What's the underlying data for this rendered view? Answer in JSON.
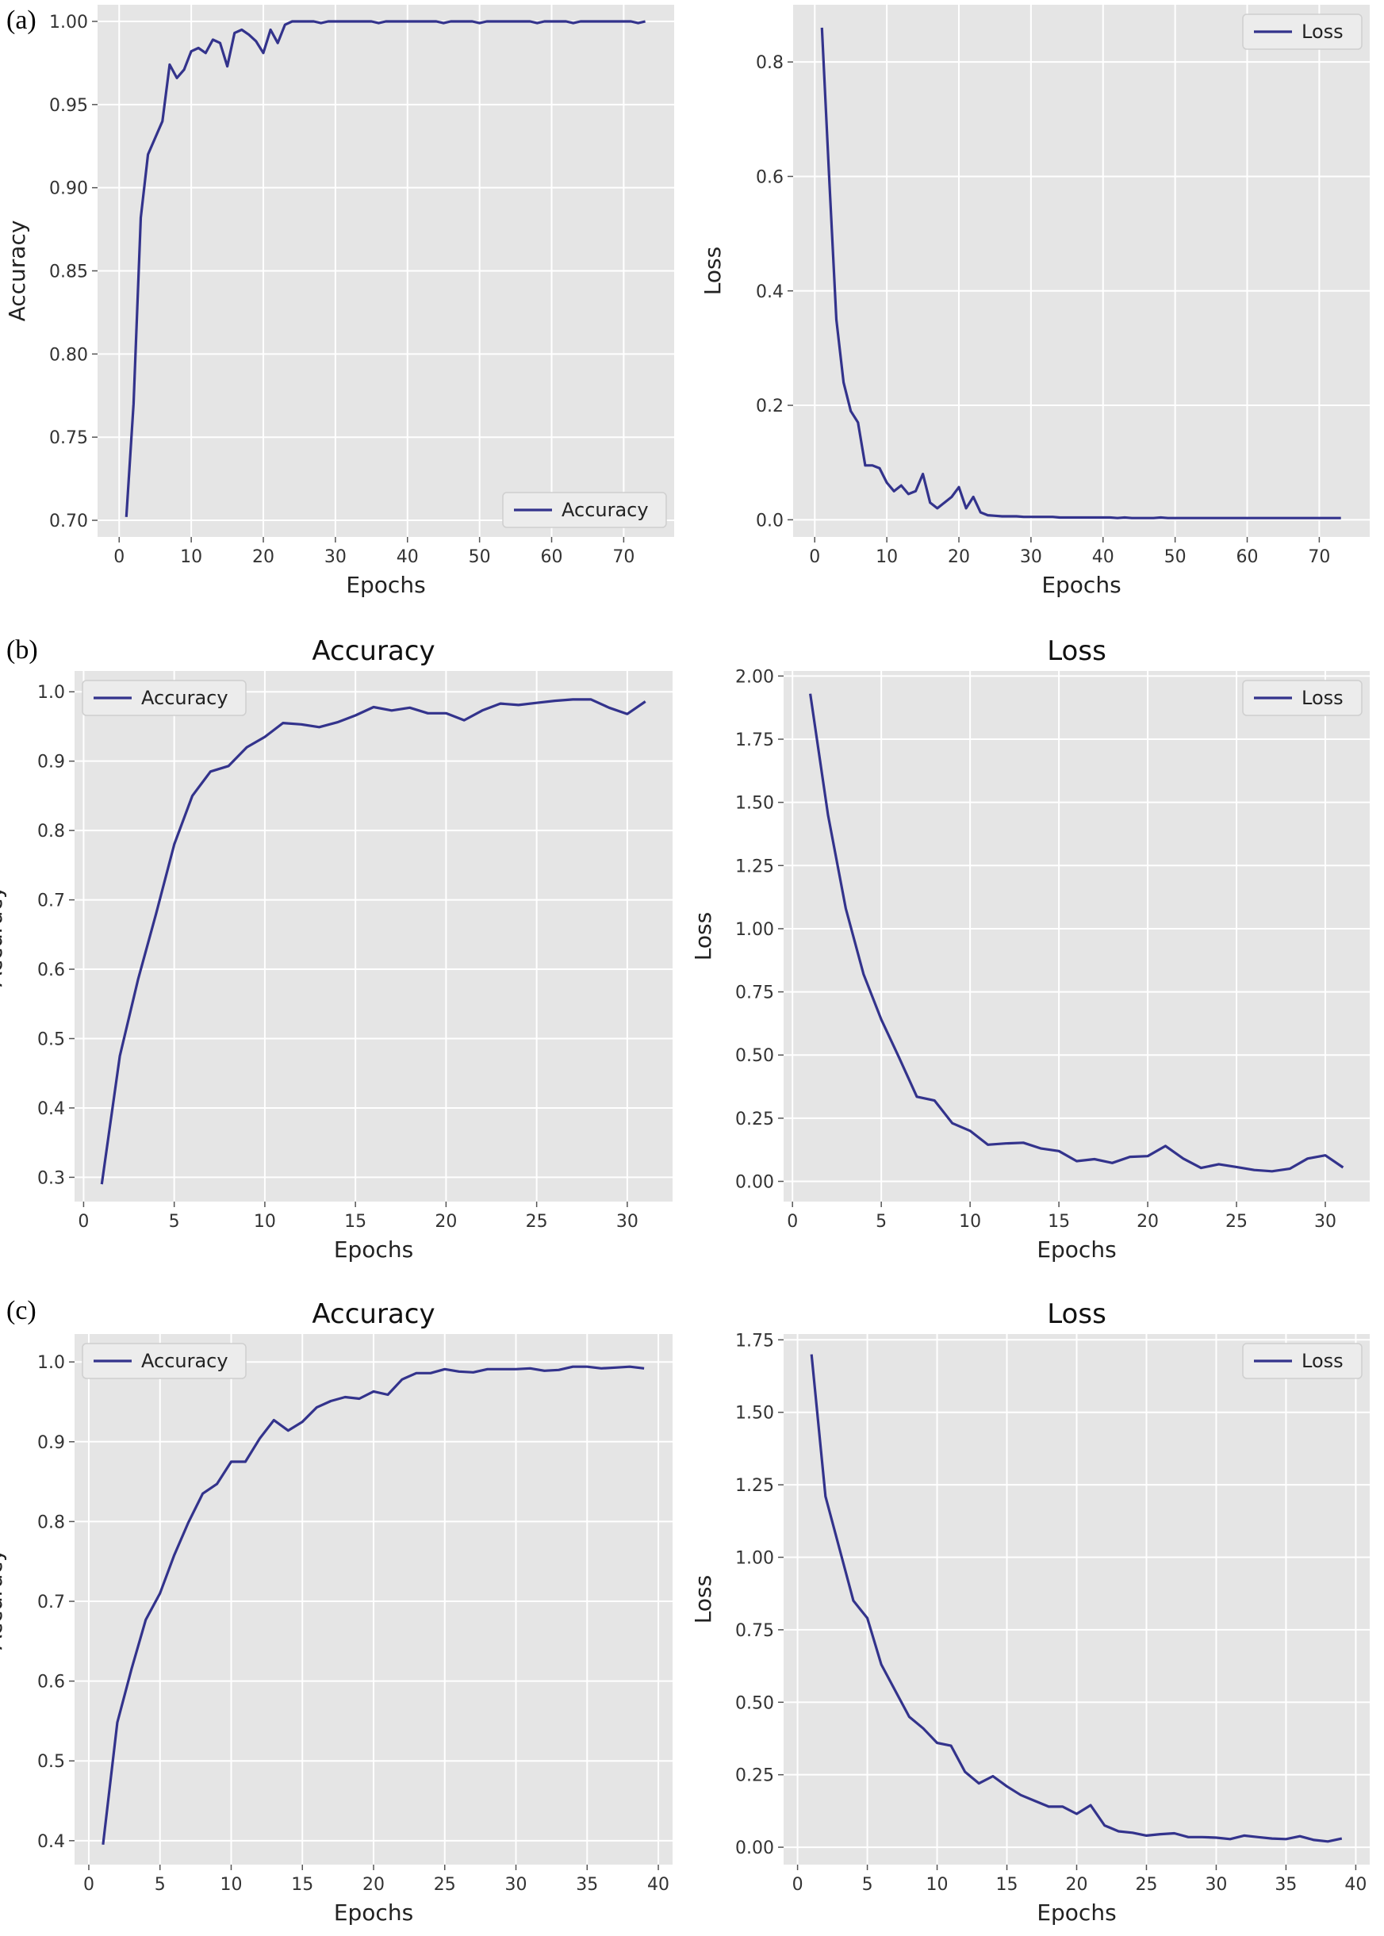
{
  "panel_labels": [
    "(a)",
    "(b)",
    "(c)"
  ],
  "colors": {
    "line": "#33338c",
    "panel_bg": "#e5e5e5",
    "grid": "#ffffff",
    "legend_bg": "#ececec"
  },
  "chart_data": [
    {
      "id": "a-accuracy",
      "type": "line",
      "panel": "(a)",
      "title": "",
      "xlabel": "Epochs",
      "ylabel": "Accuracy",
      "xlim": [
        -3,
        77
      ],
      "ylim": [
        0.69,
        1.01
      ],
      "xticks": [
        0,
        10,
        20,
        30,
        40,
        50,
        60,
        70
      ],
      "yticks": [
        0.7,
        0.75,
        0.8,
        0.85,
        0.9,
        0.95,
        1.0
      ],
      "ydecimals": 2,
      "legend": {
        "label": "Accuracy",
        "position": "bottom-right"
      },
      "series": [
        {
          "name": "Accuracy",
          "x": [
            1,
            2,
            3,
            4,
            5,
            6,
            7,
            8,
            9,
            10,
            11,
            12,
            13,
            14,
            15,
            16,
            17,
            18,
            19,
            20,
            21,
            22,
            23,
            24,
            25,
            26,
            27,
            28,
            29,
            30,
            31,
            32,
            33,
            34,
            35,
            36,
            37,
            38,
            39,
            40,
            41,
            42,
            43,
            44,
            45,
            46,
            47,
            48,
            49,
            50,
            51,
            52,
            53,
            54,
            55,
            56,
            57,
            58,
            59,
            60,
            61,
            62,
            63,
            64,
            65,
            66,
            67,
            68,
            69,
            70,
            71,
            72,
            73
          ],
          "values": [
            0.702,
            0.77,
            0.882,
            0.92,
            0.93,
            0.94,
            0.974,
            0.966,
            0.971,
            0.982,
            0.984,
            0.981,
            0.989,
            0.987,
            0.973,
            0.993,
            0.995,
            0.992,
            0.988,
            0.981,
            0.995,
            0.987,
            0.998,
            1.0,
            1.0,
            1.0,
            1.0,
            0.999,
            1.0,
            1.0,
            1.0,
            1.0,
            1.0,
            1.0,
            1.0,
            0.999,
            1.0,
            1.0,
            1.0,
            1.0,
            1.0,
            1.0,
            1.0,
            1.0,
            0.999,
            1.0,
            1.0,
            1.0,
            1.0,
            0.999,
            1.0,
            1.0,
            1.0,
            1.0,
            1.0,
            1.0,
            1.0,
            0.999,
            1.0,
            1.0,
            1.0,
            1.0,
            0.999,
            1.0,
            1.0,
            1.0,
            1.0,
            1.0,
            1.0,
            1.0,
            1.0,
            0.999,
            1.0
          ]
        }
      ]
    },
    {
      "id": "a-loss",
      "type": "line",
      "panel": "(a)",
      "title": "",
      "xlabel": "Epochs",
      "ylabel": "Loss",
      "xlim": [
        -3,
        77
      ],
      "ylim": [
        -0.03,
        0.9
      ],
      "xticks": [
        0,
        10,
        20,
        30,
        40,
        50,
        60,
        70
      ],
      "yticks": [
        0.0,
        0.2,
        0.4,
        0.6,
        0.8
      ],
      "ydecimals": 1,
      "legend": {
        "label": "Loss",
        "position": "top-right"
      },
      "series": [
        {
          "name": "Loss",
          "x": [
            1,
            2,
            3,
            4,
            5,
            6,
            7,
            8,
            9,
            10,
            11,
            12,
            13,
            14,
            15,
            16,
            17,
            18,
            19,
            20,
            21,
            22,
            23,
            24,
            25,
            26,
            27,
            28,
            29,
            30,
            31,
            32,
            33,
            34,
            35,
            36,
            37,
            38,
            39,
            40,
            41,
            42,
            43,
            44,
            45,
            46,
            47,
            48,
            49,
            50,
            51,
            52,
            53,
            54,
            55,
            56,
            57,
            58,
            59,
            60,
            61,
            62,
            63,
            64,
            65,
            66,
            67,
            68,
            69,
            70,
            71,
            72,
            73
          ],
          "values": [
            0.86,
            0.6,
            0.35,
            0.24,
            0.19,
            0.17,
            0.095,
            0.095,
            0.09,
            0.065,
            0.05,
            0.06,
            0.045,
            0.05,
            0.08,
            0.03,
            0.02,
            0.03,
            0.04,
            0.057,
            0.02,
            0.04,
            0.013,
            0.008,
            0.007,
            0.006,
            0.006,
            0.006,
            0.005,
            0.005,
            0.005,
            0.005,
            0.005,
            0.004,
            0.004,
            0.004,
            0.004,
            0.004,
            0.004,
            0.004,
            0.004,
            0.003,
            0.004,
            0.003,
            0.003,
            0.003,
            0.003,
            0.004,
            0.003,
            0.003,
            0.003,
            0.003,
            0.003,
            0.003,
            0.003,
            0.003,
            0.003,
            0.003,
            0.003,
            0.003,
            0.003,
            0.003,
            0.003,
            0.003,
            0.003,
            0.003,
            0.003,
            0.003,
            0.003,
            0.003,
            0.003,
            0.003,
            0.003
          ]
        }
      ]
    },
    {
      "id": "b-accuracy",
      "type": "line",
      "panel": "(b)",
      "title": "Accuracy",
      "xlabel": "Epochs",
      "ylabel": "Accuracy",
      "xlim": [
        -0.5,
        32.5
      ],
      "ylim": [
        0.265,
        1.03
      ],
      "xticks": [
        0,
        5,
        10,
        15,
        20,
        25,
        30
      ],
      "yticks": [
        0.3,
        0.4,
        0.5,
        0.6,
        0.7,
        0.8,
        0.9,
        1.0
      ],
      "ydecimals": 1,
      "legend": {
        "label": "Accuracy",
        "position": "top-left"
      },
      "series": [
        {
          "name": "Accuracy",
          "x": [
            1,
            2,
            3,
            4,
            5,
            6,
            7,
            8,
            9,
            10,
            11,
            12,
            13,
            14,
            15,
            16,
            17,
            18,
            19,
            20,
            21,
            22,
            23,
            24,
            25,
            26,
            27,
            28,
            29,
            30,
            31
          ],
          "values": [
            0.29,
            0.475,
            0.585,
            0.68,
            0.78,
            0.85,
            0.885,
            0.893,
            0.92,
            0.935,
            0.955,
            0.953,
            0.949,
            0.956,
            0.966,
            0.978,
            0.973,
            0.977,
            0.969,
            0.969,
            0.959,
            0.973,
            0.983,
            0.981,
            0.984,
            0.987,
            0.989,
            0.989,
            0.977,
            0.968,
            0.986
          ]
        }
      ]
    },
    {
      "id": "b-loss",
      "type": "line",
      "panel": "(b)",
      "title": "Loss",
      "xlabel": "Epochs",
      "ylabel": "Loss",
      "xlim": [
        -0.5,
        32.5
      ],
      "ylim": [
        -0.08,
        2.02
      ],
      "xticks": [
        0,
        5,
        10,
        15,
        20,
        25,
        30
      ],
      "yticks": [
        0.0,
        0.25,
        0.5,
        0.75,
        1.0,
        1.25,
        1.5,
        1.75,
        2.0
      ],
      "ydecimals": 2,
      "legend": {
        "label": "Loss",
        "position": "top-right"
      },
      "series": [
        {
          "name": "Loss",
          "x": [
            1,
            2,
            3,
            4,
            5,
            6,
            7,
            8,
            9,
            10,
            11,
            12,
            13,
            14,
            15,
            16,
            17,
            18,
            19,
            20,
            21,
            22,
            23,
            24,
            25,
            26,
            27,
            28,
            29,
            30,
            31
          ],
          "values": [
            1.93,
            1.45,
            1.08,
            0.82,
            0.64,
            0.49,
            0.335,
            0.32,
            0.23,
            0.2,
            0.145,
            0.15,
            0.153,
            0.13,
            0.12,
            0.08,
            0.088,
            0.073,
            0.097,
            0.1,
            0.14,
            0.09,
            0.053,
            0.068,
            0.057,
            0.045,
            0.04,
            0.05,
            0.09,
            0.103,
            0.055
          ]
        }
      ]
    },
    {
      "id": "c-accuracy",
      "type": "line",
      "panel": "(c)",
      "title": "Accuracy",
      "xlabel": "Epochs",
      "ylabel": "Accuracy",
      "xlim": [
        -1,
        41
      ],
      "ylim": [
        0.37,
        1.035
      ],
      "xticks": [
        0,
        5,
        10,
        15,
        20,
        25,
        30,
        35,
        40
      ],
      "yticks": [
        0.4,
        0.5,
        0.6,
        0.7,
        0.8,
        0.9,
        1.0
      ],
      "ydecimals": 1,
      "legend": {
        "label": "Accuracy",
        "position": "top-left"
      },
      "series": [
        {
          "name": "Accuracy",
          "x": [
            1,
            2,
            3,
            4,
            5,
            6,
            7,
            8,
            9,
            10,
            11,
            12,
            13,
            14,
            15,
            16,
            17,
            18,
            19,
            20,
            21,
            22,
            23,
            24,
            25,
            26,
            27,
            28,
            29,
            30,
            31,
            32,
            33,
            34,
            35,
            36,
            37,
            38,
            39
          ],
          "values": [
            0.395,
            0.548,
            0.615,
            0.677,
            0.71,
            0.758,
            0.799,
            0.835,
            0.847,
            0.875,
            0.875,
            0.904,
            0.927,
            0.914,
            0.925,
            0.943,
            0.951,
            0.956,
            0.954,
            0.963,
            0.959,
            0.978,
            0.986,
            0.986,
            0.991,
            0.988,
            0.987,
            0.991,
            0.991,
            0.991,
            0.992,
            0.989,
            0.99,
            0.994,
            0.994,
            0.992,
            0.993,
            0.994,
            0.992
          ]
        }
      ]
    },
    {
      "id": "c-loss",
      "type": "line",
      "panel": "(c)",
      "title": "Loss",
      "xlabel": "Epochs",
      "ylabel": "Loss",
      "xlim": [
        -1,
        41
      ],
      "ylim": [
        -0.06,
        1.77
      ],
      "xticks": [
        0,
        5,
        10,
        15,
        20,
        25,
        30,
        35,
        40
      ],
      "yticks": [
        0.0,
        0.25,
        0.5,
        0.75,
        1.0,
        1.25,
        1.5,
        1.75
      ],
      "ydecimals": 2,
      "legend": {
        "label": "Loss",
        "position": "top-right"
      },
      "series": [
        {
          "name": "Loss",
          "x": [
            1,
            2,
            3,
            4,
            5,
            6,
            7,
            8,
            9,
            10,
            11,
            12,
            13,
            14,
            15,
            16,
            17,
            18,
            19,
            20,
            21,
            22,
            23,
            24,
            25,
            26,
            27,
            28,
            29,
            30,
            31,
            32,
            33,
            34,
            35,
            36,
            37,
            38,
            39
          ],
          "values": [
            1.7,
            1.21,
            1.03,
            0.85,
            0.79,
            0.63,
            0.54,
            0.45,
            0.41,
            0.36,
            0.35,
            0.26,
            0.22,
            0.245,
            0.21,
            0.18,
            0.16,
            0.14,
            0.14,
            0.115,
            0.145,
            0.075,
            0.055,
            0.05,
            0.04,
            0.045,
            0.048,
            0.035,
            0.035,
            0.033,
            0.028,
            0.04,
            0.035,
            0.03,
            0.028,
            0.038,
            0.025,
            0.02,
            0.03
          ]
        }
      ]
    }
  ]
}
